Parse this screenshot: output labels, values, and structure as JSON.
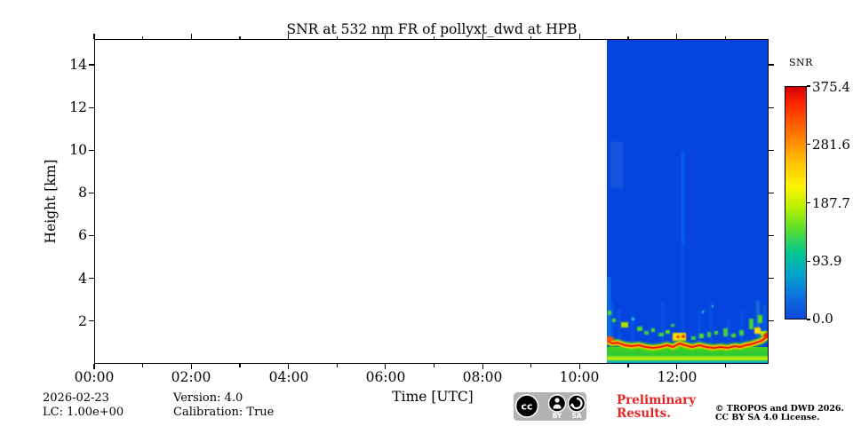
{
  "title": "SNR at 532 nm FR of pollyxt_dwd at HPB",
  "axes": {
    "xlabel": "Time [UTC]",
    "ylabel": "Height [km]",
    "x_ticks": [
      "00:00",
      "02:00",
      "04:00",
      "06:00",
      "08:00",
      "10:00",
      "12:00"
    ],
    "y_ticks": [
      "2",
      "4",
      "6",
      "8",
      "10",
      "12",
      "14"
    ]
  },
  "colorbar": {
    "label": "SNR",
    "ticks": [
      "375.4",
      "281.6",
      "187.7",
      "93.9",
      "0.0"
    ]
  },
  "chart_data": {
    "type": "heatmap",
    "title": "SNR at 532 nm FR of pollyxt_dwd at HPB",
    "xlabel": "Time [UTC]",
    "ylabel": "Height [km]",
    "x_major_ticks": [
      "00:00",
      "02:00",
      "04:00",
      "06:00",
      "08:00",
      "10:00",
      "12:00"
    ],
    "x_minor_ticks_every": "1 hour",
    "x_range": [
      "00:00",
      "~13:54"
    ],
    "y_major_ticks": [
      2,
      4,
      6,
      8,
      10,
      12,
      14
    ],
    "y_range_km": [
      0,
      15.2
    ],
    "grid": false,
    "colorbar": {
      "label": "SNR",
      "min": 0.0,
      "max": 375.4,
      "ticks": [
        0.0,
        93.9,
        187.7,
        281.6,
        375.4
      ],
      "colormap": "jet-like: bright blue -> cyan -> green -> yellow -> orange -> red"
    },
    "data_coverage": {
      "start_utc": "~10:35",
      "end_utc": "~13:54",
      "note": "panel is blank (white) before ~10:35 UTC; colored measurement block only on right side"
    },
    "features": [
      {
        "name": "strong-snr-band",
        "height_km": "0.8-1.2",
        "snr_approx": "300-375 (wavy red/orange line spanning whole measured period, rising near 13:50)"
      },
      {
        "name": "near-surface-overlap-layers",
        "height_km": "0-0.8",
        "snr_approx": "90-230 (green band with yellow-green sub-line ~0.3 km, cyan/blue at surface)"
      },
      {
        "name": "scattered-boundary-layer-blobs",
        "height_km": "1.2-2.3",
        "snr_approx": "90-300 (green/yellow specks, one yellow blob with red core ~11:55)"
      },
      {
        "name": "clear-air-background",
        "height_km": "1.5-15.2",
        "snr_approx": "0-20 (uniform bright blue)"
      },
      {
        "name": "faint-vertical-streaks",
        "detail": "weak cyan columns e.g. ~11:58 reaching ~10 km, several short ones below 3 km"
      }
    ]
  },
  "footer": {
    "date": "2026-02-23",
    "lc": "LC: 1.00e+00",
    "version": "Version: 4.0",
    "calibration": "Calibration: True",
    "preliminary_line1": "Preliminary",
    "preliminary_line2": "Results.",
    "copyright_line1": "© TROPOS and DWD 2026.",
    "copyright_line2": "CC BY SA 4.0 License.",
    "cc_circle": "cc",
    "cc_by": "BY",
    "cc_sa": "SA"
  },
  "colors": {
    "data_background_blue": "#0545de",
    "band_red": "#ea1c00",
    "preliminary_red": "#e62424",
    "cc_badge_gray": "#b3b3b3"
  }
}
